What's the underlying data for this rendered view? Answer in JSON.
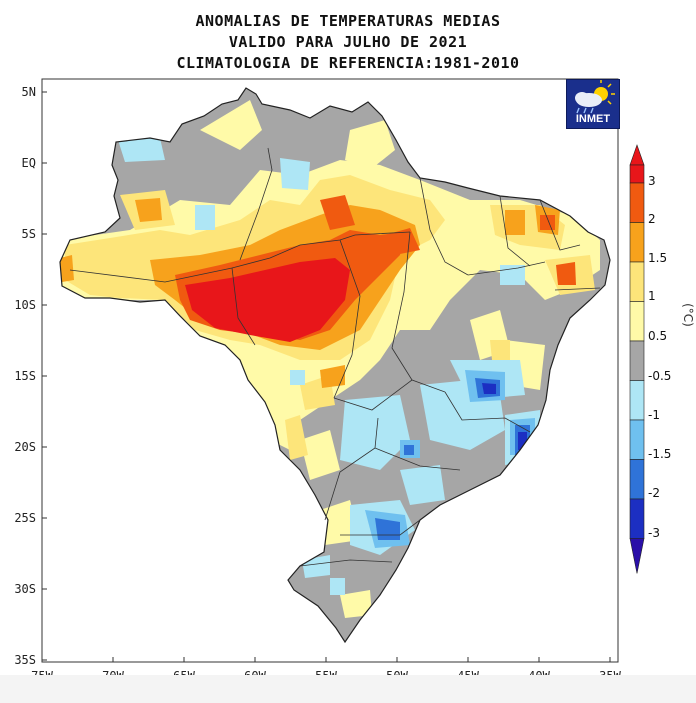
{
  "titles": {
    "line1": "ANOMALIAS DE TEMPERATURAS MEDIAS",
    "line2": "VALIDO PARA JULHO DE 2021",
    "line3": "CLIMATOLOGIA DE REFERENCIA:1981-2010"
  },
  "logo": {
    "text": "INMET",
    "icon": "sun-cloud-rain-icon"
  },
  "axes": {
    "lat_labels": [
      "5N",
      "EQ",
      "5S",
      "10S",
      "15S",
      "20S",
      "25S",
      "30S",
      "35S"
    ],
    "lon_labels": [
      "75W",
      "70W",
      "65W",
      "60W",
      "55W",
      "50W",
      "45W",
      "40W",
      "35W"
    ]
  },
  "colorbar": {
    "unit": "(°C)",
    "labels": [
      "3",
      "2",
      "1.5",
      "1",
      "0.5",
      "-0.5",
      "-1",
      "-1.5",
      "-2",
      "-3"
    ],
    "colors": [
      "#e8161a",
      "#f05a10",
      "#f7a21c",
      "#fde57a",
      "#fffaa8",
      "#a6a6a6",
      "#aee6f5",
      "#6fc0ef",
      "#2f73d8",
      "#1c2fc2",
      "#2a0fa8"
    ]
  },
  "map": {
    "base_color": "#a6a6a6",
    "background_color": "#ffffff"
  }
}
